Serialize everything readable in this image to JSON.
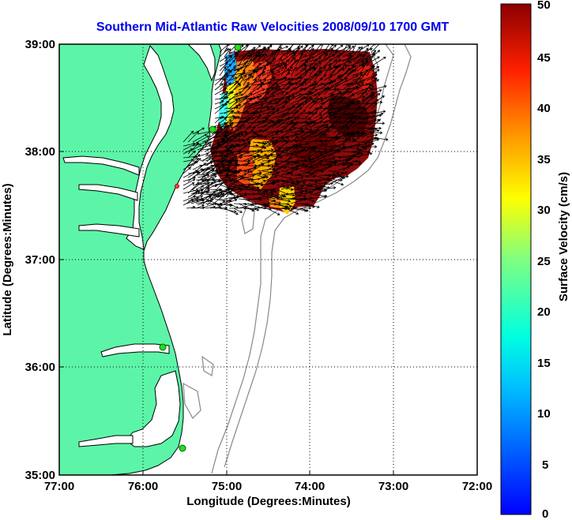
{
  "title": "Southern Mid-Atlantic Raw Velocities 2008/09/10 1700 GMT",
  "x_axis": {
    "label": "Longitude (Degrees:Minutes)",
    "ticks": [
      "77:00",
      "76:00",
      "75:00",
      "74:00",
      "73:00",
      "72:00"
    ]
  },
  "y_axis": {
    "label": "Latitude (Degrees:Minutes)",
    "ticks": [
      "39:00",
      "38:00",
      "37:00",
      "36:00",
      "35:00"
    ]
  },
  "colorbar": {
    "label": "Surface Velocity (cm/s)",
    "ticks": [
      "50",
      "45",
      "40",
      "35",
      "30",
      "25",
      "20",
      "15",
      "10",
      "5",
      "0"
    ],
    "range": [
      0,
      50
    ],
    "colormap": "jet"
  },
  "colors": {
    "land": "#5cf5a8",
    "ocean": "#ffffff",
    "title": "#0000ee",
    "station_marker": "#22dd22"
  },
  "map": {
    "lon_range": [
      -77,
      -72
    ],
    "lat_range": [
      35,
      39
    ],
    "grid": "dotted"
  }
}
